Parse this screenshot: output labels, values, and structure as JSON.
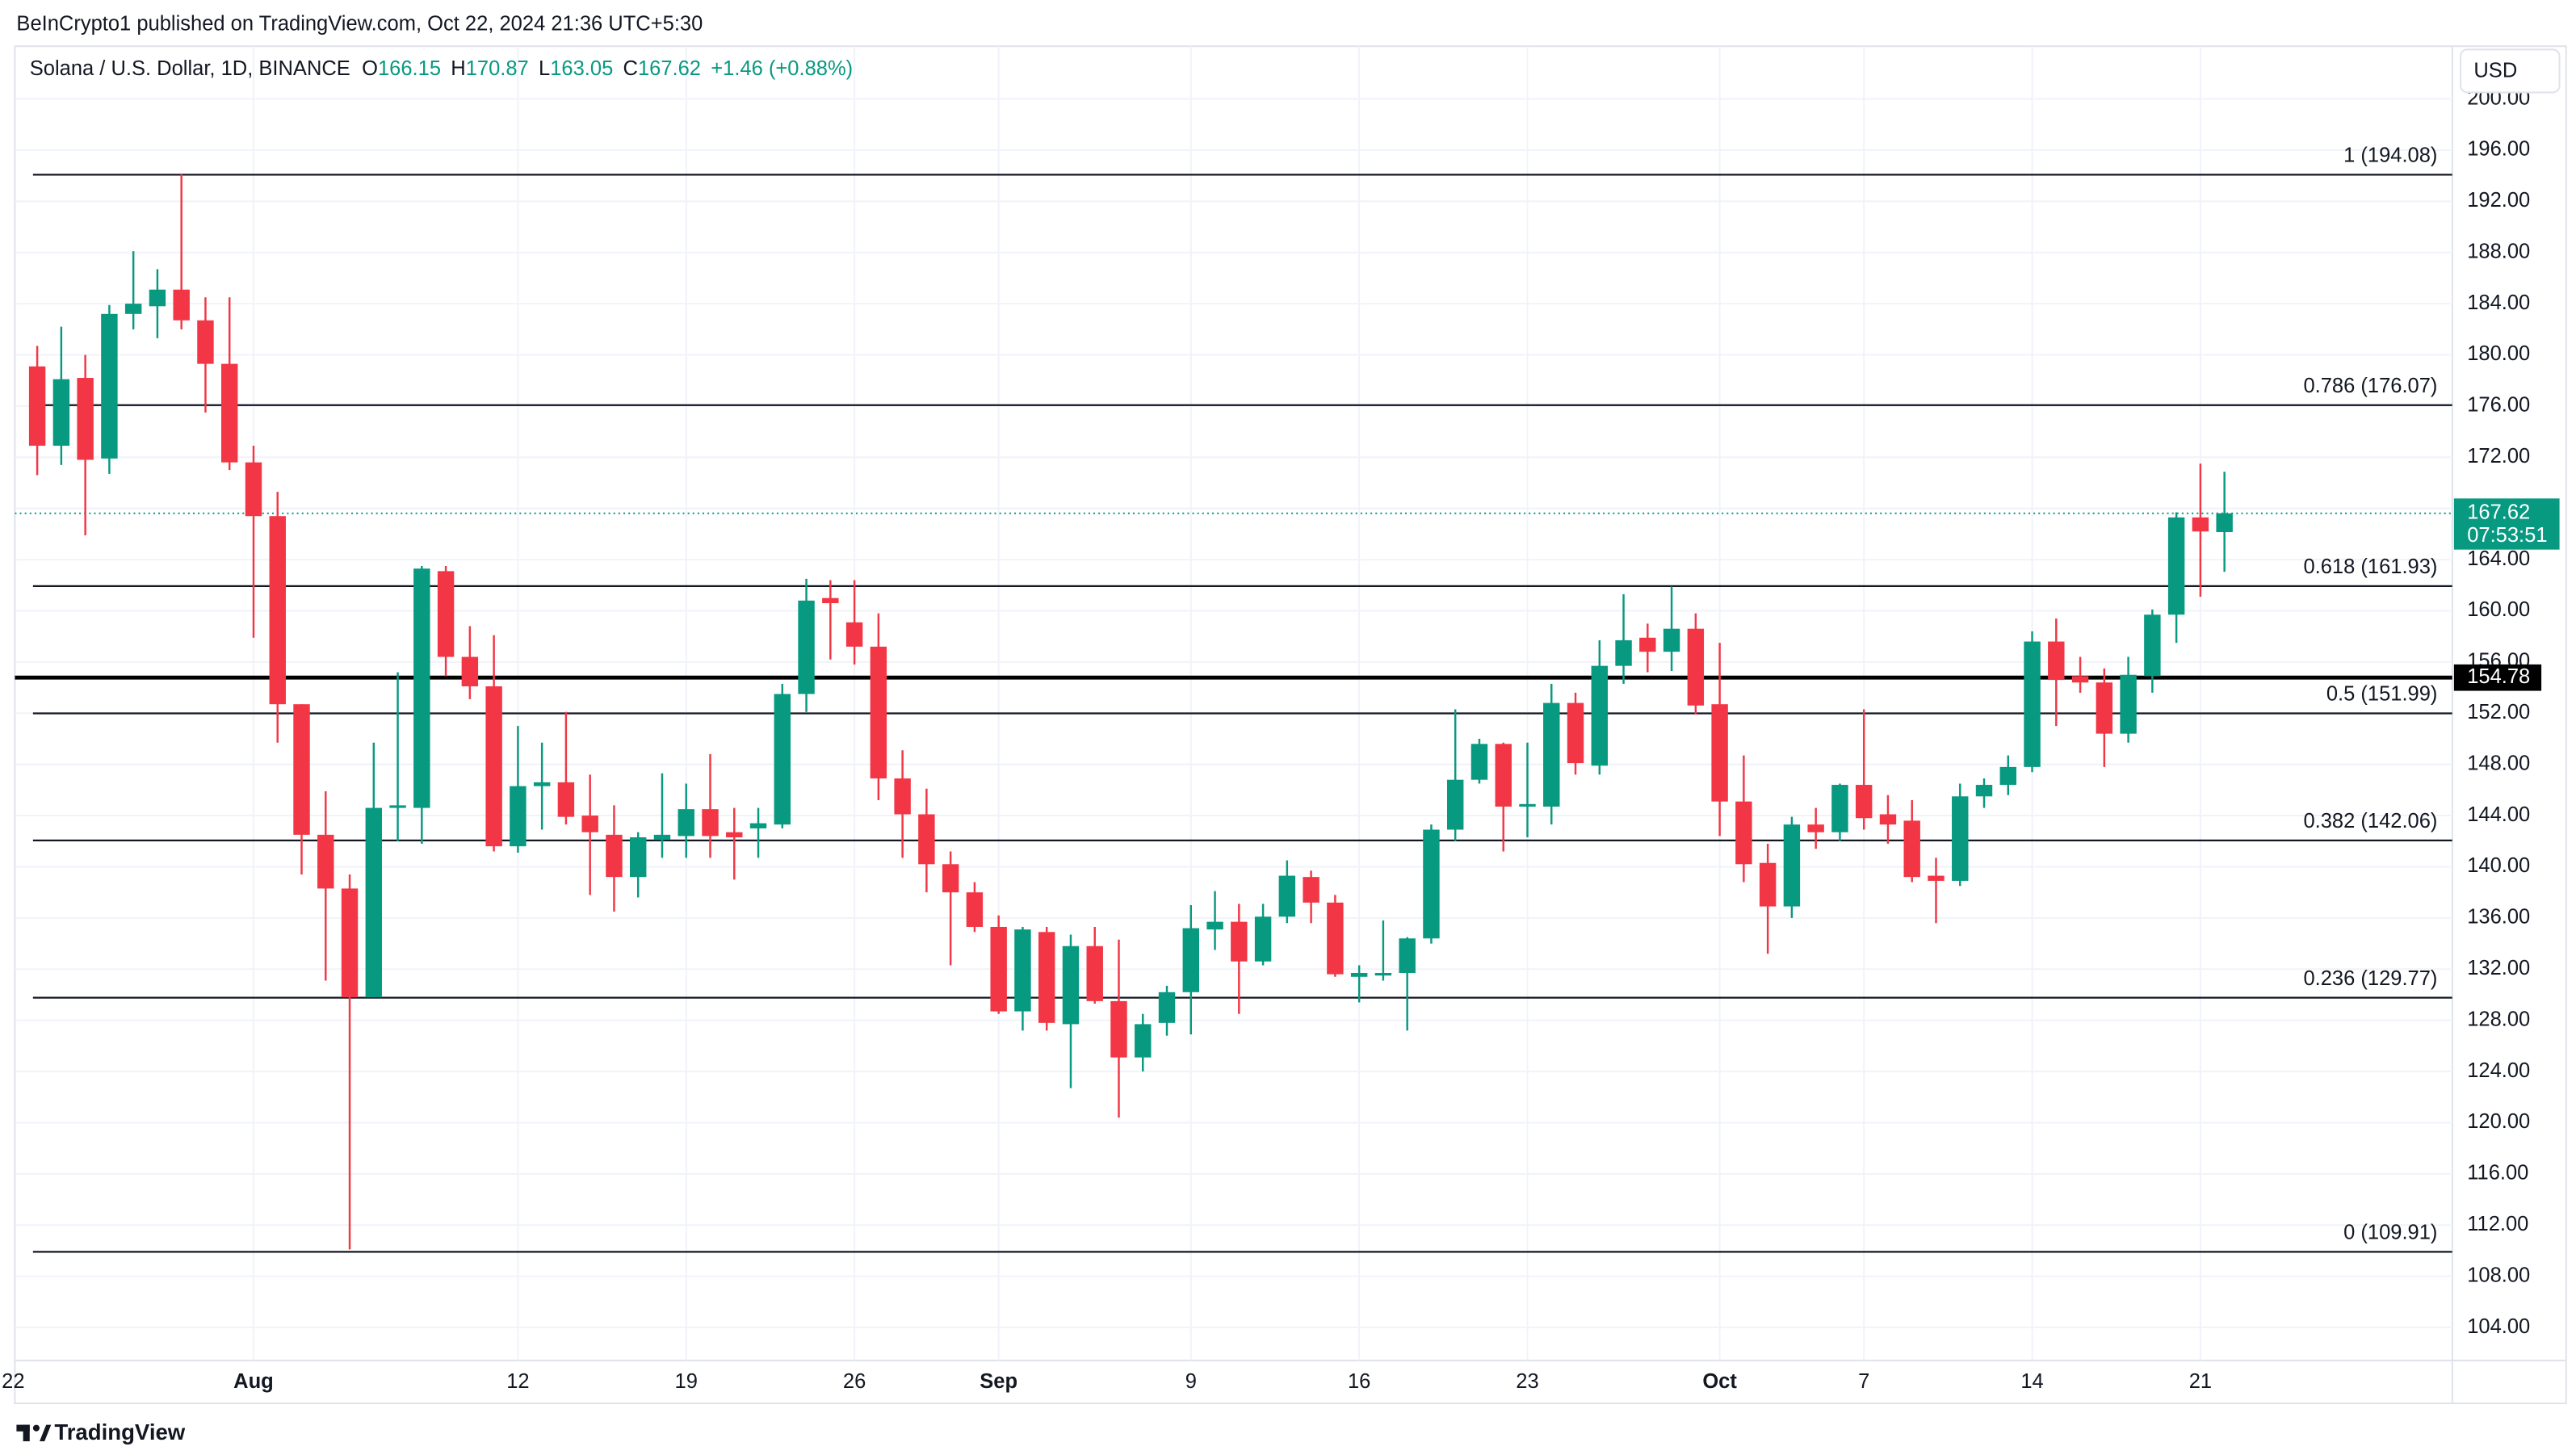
{
  "header": {
    "publisher": "BeInCrypto1 published on TradingView.com, Oct 22, 2024 21:36 UTC+5:30",
    "symbol": "Solana / U.S. Dollar, 1D, BINANCE",
    "open_label": "O",
    "high_label": "H",
    "low_label": "L",
    "close_label": "C",
    "change": "+1.46 (+0.88%)",
    "currency": "USD",
    "countdown": "07:53:51",
    "brand": "TradingView"
  },
  "chart_data": {
    "type": "candlestick",
    "x": [
      "2024-07-23",
      "2024-07-24",
      "2024-07-25",
      "2024-07-26",
      "2024-07-27",
      "2024-07-28",
      "2024-07-29",
      "2024-07-30",
      "2024-07-31",
      "2024-08-01",
      "2024-08-02",
      "2024-08-03",
      "2024-08-04",
      "2024-08-05",
      "2024-08-06",
      "2024-08-07",
      "2024-08-08",
      "2024-08-09",
      "2024-08-10",
      "2024-08-11",
      "2024-08-12",
      "2024-08-13",
      "2024-08-14",
      "2024-08-15",
      "2024-08-16",
      "2024-08-17",
      "2024-08-18",
      "2024-08-19",
      "2024-08-20",
      "2024-08-21",
      "2024-08-22",
      "2024-08-23",
      "2024-08-24",
      "2024-08-25",
      "2024-08-26",
      "2024-08-27",
      "2024-08-28",
      "2024-08-29",
      "2024-08-30",
      "2024-08-31",
      "2024-09-01",
      "2024-09-02",
      "2024-09-03",
      "2024-09-04",
      "2024-09-05",
      "2024-09-06",
      "2024-09-07",
      "2024-09-08",
      "2024-09-09",
      "2024-09-10",
      "2024-09-11",
      "2024-09-12",
      "2024-09-13",
      "2024-09-14",
      "2024-09-15",
      "2024-09-16",
      "2024-09-17",
      "2024-09-18",
      "2024-09-19",
      "2024-09-20",
      "2024-09-21",
      "2024-09-22",
      "2024-09-23",
      "2024-09-24",
      "2024-09-25",
      "2024-09-26",
      "2024-09-27",
      "2024-09-28",
      "2024-09-29",
      "2024-09-30",
      "2024-10-01",
      "2024-10-02",
      "2024-10-03",
      "2024-10-04",
      "2024-10-05",
      "2024-10-06",
      "2024-10-07",
      "2024-10-08",
      "2024-10-09",
      "2024-10-10",
      "2024-10-11",
      "2024-10-12",
      "2024-10-13",
      "2024-10-14",
      "2024-10-15",
      "2024-10-16",
      "2024-10-17",
      "2024-10-18",
      "2024-10-19",
      "2024-10-20",
      "2024-10-21",
      "2024-10-22"
    ],
    "open": [
      179.1,
      172.9,
      178.2,
      171.9,
      183.2,
      183.8,
      185.1,
      182.7,
      179.3,
      171.6,
      167.4,
      152.7,
      142.5,
      138.3,
      129.8,
      144.6,
      144.6,
      163.1,
      156.4,
      154.1,
      141.6,
      146.3,
      146.6,
      144.0,
      142.5,
      139.2,
      142.1,
      142.4,
      144.5,
      142.7,
      143.0,
      143.3,
      153.5,
      161.0,
      159.1,
      157.2,
      146.9,
      144.1,
      140.2,
      138.0,
      135.3,
      128.7,
      134.9,
      127.7,
      133.8,
      129.5,
      125.1,
      127.8,
      130.2,
      135.1,
      135.7,
      132.6,
      136.1,
      139.2,
      137.2,
      131.4,
      131.5,
      131.7,
      134.4,
      142.9,
      146.8,
      149.6,
      144.7,
      144.7,
      152.8,
      147.9,
      155.7,
      157.9,
      156.8,
      158.6,
      152.7,
      145.1,
      140.3,
      136.9,
      143.3,
      142.7,
      146.4,
      144.1,
      143.6,
      139.3,
      138.9,
      145.5,
      146.4,
      147.8,
      157.6,
      154.9,
      154.4,
      150.4,
      154.9,
      159.7,
      167.3,
      166.15
    ],
    "high": [
      180.7,
      182.2,
      180.0,
      183.9,
      188.1,
      186.7,
      194.1,
      184.5,
      184.5,
      172.9,
      169.3,
      152.7,
      145.9,
      139.4,
      149.7,
      155.2,
      163.5,
      163.5,
      158.8,
      158.1,
      151.0,
      149.7,
      152.1,
      147.2,
      144.8,
      142.7,
      147.3,
      146.5,
      148.8,
      144.6,
      144.6,
      154.3,
      162.5,
      162.4,
      162.4,
      159.8,
      149.1,
      146.1,
      141.2,
      138.8,
      136.2,
      135.3,
      135.3,
      134.7,
      135.3,
      134.3,
      128.5,
      130.7,
      137.0,
      138.1,
      137.1,
      137.1,
      140.5,
      139.7,
      137.8,
      132.3,
      135.8,
      134.5,
      143.3,
      152.3,
      150.0,
      149.7,
      149.7,
      154.3,
      153.6,
      157.7,
      161.3,
      159.0,
      161.9,
      159.8,
      157.5,
      148.7,
      141.8,
      143.9,
      144.6,
      146.5,
      152.3,
      145.6,
      145.2,
      140.7,
      146.5,
      146.9,
      148.7,
      158.4,
      159.4,
      156.4,
      155.5,
      156.4,
      160.1,
      167.7,
      171.5,
      170.87
    ],
    "low": [
      170.6,
      171.4,
      165.9,
      170.7,
      182.0,
      181.3,
      182.0,
      175.5,
      171.0,
      157.9,
      149.7,
      139.4,
      131.1,
      110.1,
      129.8,
      142.0,
      141.8,
      154.9,
      153.1,
      141.2,
      141.1,
      142.9,
      143.3,
      137.8,
      136.5,
      137.6,
      140.7,
      140.7,
      140.7,
      139.0,
      140.7,
      143.0,
      152.1,
      156.2,
      155.8,
      145.2,
      140.7,
      138.0,
      132.3,
      134.9,
      128.5,
      127.2,
      127.2,
      122.7,
      129.3,
      120.4,
      124.0,
      126.8,
      126.9,
      133.5,
      128.5,
      132.3,
      135.6,
      135.6,
      131.4,
      129.4,
      131.1,
      127.2,
      134.0,
      142.0,
      146.5,
      141.2,
      142.3,
      143.3,
      147.2,
      147.2,
      154.3,
      155.2,
      155.3,
      151.9,
      142.4,
      138.8,
      133.2,
      136.0,
      141.4,
      142.0,
      142.9,
      141.8,
      138.8,
      135.6,
      138.5,
      144.6,
      145.6,
      147.4,
      151.0,
      153.6,
      147.8,
      149.7,
      153.6,
      157.5,
      161.1,
      163.05
    ],
    "close": [
      172.9,
      178.1,
      171.8,
      183.2,
      184.0,
      185.1,
      182.7,
      179.3,
      171.6,
      167.4,
      152.7,
      142.5,
      138.3,
      129.8,
      144.6,
      144.8,
      163.3,
      156.4,
      154.1,
      141.6,
      146.3,
      146.6,
      143.9,
      142.7,
      139.2,
      142.3,
      142.5,
      144.5,
      142.4,
      142.3,
      143.4,
      153.5,
      160.8,
      160.6,
      157.2,
      146.9,
      144.1,
      140.2,
      138.0,
      135.3,
      128.7,
      135.1,
      127.8,
      133.8,
      129.5,
      125.1,
      127.7,
      130.2,
      135.2,
      135.7,
      132.6,
      136.1,
      139.3,
      137.2,
      131.6,
      131.7,
      131.7,
      134.4,
      142.9,
      146.8,
      149.6,
      144.7,
      144.9,
      152.8,
      148.1,
      155.7,
      157.7,
      156.8,
      158.6,
      152.6,
      145.1,
      140.2,
      136.9,
      143.3,
      142.7,
      146.4,
      143.8,
      143.3,
      139.2,
      138.9,
      145.5,
      146.4,
      147.8,
      157.6,
      154.6,
      154.4,
      150.4,
      155.0,
      159.7,
      167.3,
      166.2,
      167.62
    ],
    "up_color": "#089981",
    "down_color": "#f23645",
    "xlim": [
      "2024-07-22",
      "2024-10-31"
    ],
    "xticks": [
      {
        "value": "2024-07-22",
        "label": "22"
      },
      {
        "value": "2024-08-01",
        "label": "Aug"
      },
      {
        "value": "2024-08-12",
        "label": "12"
      },
      {
        "value": "2024-08-19",
        "label": "19"
      },
      {
        "value": "2024-08-26",
        "label": "26"
      },
      {
        "value": "2024-09-01",
        "label": "Sep"
      },
      {
        "value": "2024-09-09",
        "label": "9"
      },
      {
        "value": "2024-09-16",
        "label": "16"
      },
      {
        "value": "2024-09-23",
        "label": "23"
      },
      {
        "value": "2024-10-01",
        "label": "Oct"
      },
      {
        "value": "2024-10-07",
        "label": "7"
      },
      {
        "value": "2024-10-14",
        "label": "14"
      },
      {
        "value": "2024-10-21",
        "label": "21"
      }
    ],
    "ylim": [
      101.42,
      204.12
    ],
    "yticks": [
      {
        "value": 104,
        "label": "104.00"
      },
      {
        "value": 108,
        "label": "108.00"
      },
      {
        "value": 112,
        "label": "112.00"
      },
      {
        "value": 116,
        "label": "116.00"
      },
      {
        "value": 120,
        "label": "120.00"
      },
      {
        "value": 124,
        "label": "124.00"
      },
      {
        "value": 128,
        "label": "128.00"
      },
      {
        "value": 132,
        "label": "132.00"
      },
      {
        "value": 136,
        "label": "136.00"
      },
      {
        "value": 140,
        "label": "140.00"
      },
      {
        "value": 144,
        "label": "144.00"
      },
      {
        "value": 148,
        "label": "148.00"
      },
      {
        "value": 152,
        "label": "152.00"
      },
      {
        "value": 156,
        "label": "156.00"
      },
      {
        "value": 160,
        "label": "160.00"
      },
      {
        "value": 164,
        "label": "164.00"
      },
      {
        "value": 168,
        "label": "168.00"
      },
      {
        "value": 172,
        "label": "172.00"
      },
      {
        "value": 176,
        "label": "176.00"
      },
      {
        "value": 180,
        "label": "180.00"
      },
      {
        "value": 184,
        "label": "184.00"
      },
      {
        "value": 188,
        "label": "188.00"
      },
      {
        "value": 192,
        "label": "192.00"
      },
      {
        "value": 196,
        "label": "196.00"
      },
      {
        "value": 200,
        "label": "200.00"
      }
    ],
    "grid": true,
    "fib_levels": [
      {
        "value": 194.08,
        "label": "1 (194.08)"
      },
      {
        "value": 176.07,
        "label": "0.786 (176.07)"
      },
      {
        "value": 161.93,
        "label": "0.618 (161.93)"
      },
      {
        "value": 151.99,
        "label": "0.5 (151.99)"
      },
      {
        "value": 142.06,
        "label": "0.382 (142.06)"
      },
      {
        "value": 129.77,
        "label": "0.236 (129.77)"
      },
      {
        "value": 109.91,
        "label": "0 (109.91)"
      }
    ],
    "support_level": 154.78
  }
}
